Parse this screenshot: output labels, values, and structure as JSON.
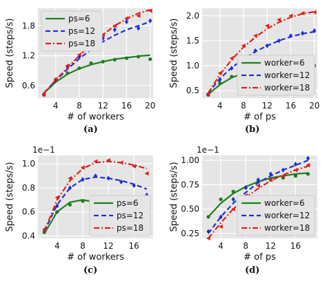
{
  "figure": {
    "captions": [
      "(a)",
      "(b)",
      "(c)",
      "(d)"
    ]
  },
  "chart_data": [
    {
      "type": "scatter",
      "panel": "(a)",
      "xlabel": "# of workers",
      "ylabel": "Speed (steps/s)",
      "xlim": [
        1,
        20.5
      ],
      "ylim": [
        0.35,
        2.15
      ],
      "xticks": [
        4,
        8,
        12,
        16,
        20
      ],
      "yticks": [
        0.6,
        1.2,
        1.8
      ],
      "ytick_labels": [
        "0.6",
        "1.2",
        "1.8"
      ],
      "exponent_label": "",
      "grid": true,
      "legend_position": "upper-left",
      "series": [
        {
          "name": "ps=6",
          "color": "#1a7f1a",
          "dash": "solid",
          "marker": "circle",
          "points_x": [
            2,
            4,
            6,
            8,
            10,
            12,
            14,
            16,
            18,
            20
          ],
          "points_y": [
            0.42,
            0.7,
            0.85,
            0.95,
            1.05,
            1.08,
            1.12,
            1.15,
            1.18,
            1.13
          ],
          "fit_x": [
            2,
            4,
            6,
            8,
            10,
            12,
            14,
            16,
            18,
            20
          ],
          "fit_y": [
            0.45,
            0.67,
            0.83,
            0.94,
            1.02,
            1.08,
            1.13,
            1.16,
            1.19,
            1.21
          ]
        },
        {
          "name": "ps=12",
          "color": "#1f2fd0",
          "dash": "dashed",
          "marker": "diamond",
          "points_x": [
            2,
            4,
            6,
            8,
            10,
            12,
            14,
            16,
            18,
            20
          ],
          "points_y": [
            0.42,
            0.72,
            0.98,
            1.18,
            1.4,
            1.55,
            1.72,
            1.88,
            1.75,
            1.9
          ],
          "fit_x": [
            2,
            4,
            6,
            8,
            10,
            12,
            14,
            16,
            18,
            20
          ],
          "fit_y": [
            0.45,
            0.7,
            0.93,
            1.14,
            1.32,
            1.48,
            1.61,
            1.72,
            1.8,
            1.88
          ]
        },
        {
          "name": "ps=18",
          "color": "#e0201a",
          "dash": "dashdot",
          "marker": "triangle",
          "points_x": [
            2,
            4,
            6,
            8,
            10,
            12,
            14,
            16,
            18,
            20
          ],
          "points_y": [
            0.42,
            0.73,
            1.0,
            1.22,
            1.45,
            1.62,
            1.8,
            1.95,
            2.0,
            2.1
          ],
          "fit_x": [
            2,
            4,
            6,
            8,
            10,
            12,
            14,
            16,
            18,
            20
          ],
          "fit_y": [
            0.45,
            0.71,
            0.96,
            1.2,
            1.43,
            1.62,
            1.8,
            1.94,
            2.05,
            2.12
          ]
        }
      ]
    },
    {
      "type": "scatter",
      "panel": "(b)",
      "xlabel": "# of ps",
      "ylabel": "Speed (steps/s)",
      "xlim": [
        1,
        20.5
      ],
      "ylim": [
        0.35,
        2.15
      ],
      "xticks": [
        4,
        8,
        12,
        16,
        20
      ],
      "yticks": [
        0.5,
        1.0,
        1.5,
        2.0
      ],
      "ytick_labels": [
        "0.5",
        "1.0",
        "1.5",
        "2.0"
      ],
      "exponent_label": "",
      "grid": true,
      "legend_position": "lower-right",
      "series": [
        {
          "name": "worker=6",
          "color": "#1a7f1a",
          "dash": "solid",
          "marker": "circle",
          "points_x": [
            2,
            4,
            6,
            8,
            10,
            12,
            14,
            16,
            18,
            20
          ],
          "points_y": [
            0.42,
            0.65,
            0.78,
            0.86,
            0.9,
            0.95,
            0.97,
            0.98,
            0.98,
            1.0
          ],
          "fit_x": [
            2,
            4,
            6,
            8,
            10,
            12,
            14,
            16,
            18,
            20
          ],
          "fit_y": [
            0.42,
            0.62,
            0.76,
            0.85,
            0.91,
            0.95,
            0.97,
            0.99,
            1.0,
            1.0
          ]
        },
        {
          "name": "worker=12",
          "color": "#1f2fd0",
          "dash": "dashed",
          "marker": "diamond",
          "points_x": [
            2,
            4,
            6,
            8,
            10,
            12,
            14,
            16,
            18,
            20
          ],
          "points_y": [
            0.42,
            0.72,
            0.95,
            1.15,
            1.3,
            1.4,
            1.5,
            1.6,
            1.65,
            1.7
          ],
          "fit_x": [
            2,
            4,
            6,
            8,
            10,
            12,
            14,
            16,
            18,
            20
          ],
          "fit_y": [
            0.45,
            0.74,
            0.96,
            1.13,
            1.28,
            1.4,
            1.5,
            1.58,
            1.64,
            1.68
          ]
        },
        {
          "name": "worker=18",
          "color": "#e0201a",
          "dash": "dashdot",
          "marker": "triangle",
          "points_x": [
            2,
            4,
            6,
            8,
            10,
            12,
            14,
            16,
            18,
            20
          ],
          "points_y": [
            0.42,
            0.85,
            1.15,
            1.4,
            1.6,
            1.8,
            1.92,
            2.0,
            2.05,
            2.07
          ],
          "fit_x": [
            2,
            4,
            6,
            8,
            10,
            12,
            14,
            16,
            18,
            20
          ],
          "fit_y": [
            0.45,
            0.82,
            1.12,
            1.37,
            1.57,
            1.74,
            1.87,
            1.97,
            2.04,
            2.08
          ]
        }
      ]
    },
    {
      "type": "scatter",
      "panel": "(c)",
      "xlabel": "# of workers",
      "ylabel": "Speed (steps/s)",
      "xlim": [
        1,
        19
      ],
      "ylim": [
        0.38,
        1.07
      ],
      "xticks": [
        4,
        8,
        12,
        16
      ],
      "yticks": [
        0.4,
        0.6,
        0.8,
        1.0
      ],
      "ytick_labels": [
        "0.4",
        "0.6",
        "0.8",
        "1.0"
      ],
      "exponent_label": "1e−1",
      "grid": true,
      "legend_position": "lower-right",
      "series": [
        {
          "name": "ps=6",
          "color": "#1a7f1a",
          "dash": "solid",
          "marker": "circle",
          "points_x": [
            2,
            4,
            6,
            8,
            10,
            12,
            14,
            16,
            18
          ],
          "points_y": [
            0.43,
            0.6,
            0.66,
            0.69,
            0.68,
            0.63,
            0.6,
            0.58,
            0.5
          ],
          "fit_x": [
            2,
            4,
            6,
            8,
            10,
            12,
            14,
            16,
            18
          ],
          "fit_y": [
            0.42,
            0.6,
            0.68,
            0.7,
            0.68,
            0.64,
            0.59,
            0.54,
            0.48
          ]
        },
        {
          "name": "ps=12",
          "color": "#1f2fd0",
          "dash": "dashed",
          "marker": "diamond",
          "points_x": [
            2,
            4,
            6,
            8,
            10,
            12,
            14,
            16,
            18
          ],
          "points_y": [
            0.45,
            0.65,
            0.8,
            0.87,
            0.9,
            0.88,
            0.85,
            0.82,
            0.74
          ],
          "fit_x": [
            2,
            4,
            6,
            8,
            10,
            12,
            14,
            16,
            18
          ],
          "fit_y": [
            0.44,
            0.66,
            0.8,
            0.87,
            0.89,
            0.88,
            0.86,
            0.83,
            0.79
          ]
        },
        {
          "name": "ps=18",
          "color": "#e0201a",
          "dash": "dashdot",
          "marker": "triangle",
          "points_x": [
            2,
            4,
            6,
            8,
            10,
            12,
            14,
            16,
            18
          ],
          "points_y": [
            0.45,
            0.72,
            0.88,
            0.97,
            1.02,
            1.03,
            1.01,
            0.98,
            0.92
          ],
          "fit_x": [
            2,
            4,
            6,
            8,
            10,
            12,
            14,
            16,
            18
          ],
          "fit_y": [
            0.44,
            0.7,
            0.86,
            0.96,
            1.01,
            1.02,
            1.01,
            0.99,
            0.96
          ]
        }
      ]
    },
    {
      "type": "scatter",
      "panel": "(d)",
      "xlabel": "# of ps",
      "ylabel": "Speed (steps/s)",
      "xlim": [
        1,
        19.5
      ],
      "ylim": [
        0.2,
        1.05
      ],
      "xticks": [
        4,
        8,
        12,
        16
      ],
      "yticks": [
        0.25,
        0.5,
        0.75,
        1.0
      ],
      "ytick_labels": [
        "0.25",
        "0.50",
        "0.75",
        "1.00"
      ],
      "exponent_label": "1e−1",
      "grid": true,
      "legend_position": "lower-right",
      "series": [
        {
          "name": "worker=6",
          "color": "#1a7f1a",
          "dash": "solid",
          "marker": "circle",
          "points_x": [
            2,
            4,
            6,
            8,
            10,
            12,
            14,
            16,
            18
          ],
          "points_y": [
            0.42,
            0.6,
            0.68,
            0.72,
            0.78,
            0.8,
            0.82,
            0.84,
            0.86
          ],
          "fit_x": [
            2,
            4,
            6,
            8,
            10,
            12,
            14,
            16,
            18
          ],
          "fit_y": [
            0.42,
            0.56,
            0.66,
            0.73,
            0.78,
            0.82,
            0.84,
            0.86,
            0.87
          ]
        },
        {
          "name": "worker=12",
          "color": "#1f2fd0",
          "dash": "dashed",
          "marker": "diamond",
          "points_x": [
            2,
            4,
            6,
            8,
            10,
            12,
            14,
            16,
            18
          ],
          "points_y": [
            0.27,
            0.42,
            0.6,
            0.72,
            0.8,
            0.86,
            0.9,
            0.96,
            1.02
          ],
          "fit_x": [
            2,
            4,
            6,
            8,
            10,
            12,
            14,
            16,
            18
          ],
          "fit_y": [
            0.25,
            0.42,
            0.56,
            0.67,
            0.77,
            0.84,
            0.9,
            0.95,
            1.0
          ]
        },
        {
          "name": "worker=18",
          "color": "#e0201a",
          "dash": "dashdot",
          "marker": "triangle",
          "points_x": [
            2,
            4,
            6,
            8,
            10,
            12,
            14,
            16,
            18
          ],
          "points_y": [
            0.2,
            0.32,
            0.5,
            0.64,
            0.74,
            0.8,
            0.84,
            0.9,
            0.95
          ],
          "fit_x": [
            2,
            4,
            6,
            8,
            10,
            12,
            14,
            16,
            18
          ],
          "fit_y": [
            0.2,
            0.36,
            0.5,
            0.62,
            0.71,
            0.79,
            0.85,
            0.9,
            0.94
          ]
        }
      ]
    }
  ]
}
